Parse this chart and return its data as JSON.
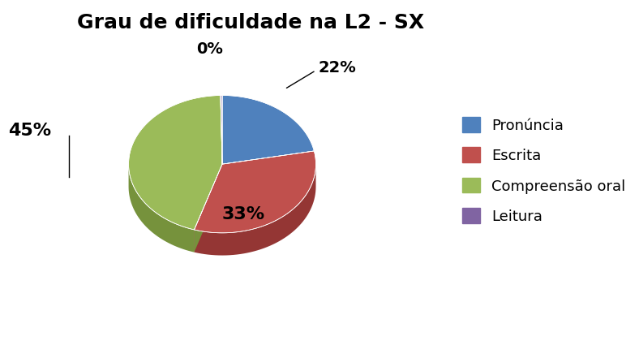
{
  "title": "Grau de dificuldade na L2 - SX",
  "labels": [
    "Pronúncia",
    "Escrita",
    "Compreensão oral",
    "Leitura"
  ],
  "values": [
    22,
    33,
    45,
    0.3
  ],
  "display_pcts": [
    "22%",
    "33%",
    "45%",
    "0%"
  ],
  "colors": [
    "#4F81BD",
    "#C0504D",
    "#9BBB59",
    "#8064A2"
  ],
  "dark_colors": [
    "#1F3864",
    "#943634",
    "#76923C",
    "#5F497A"
  ],
  "legend_labels": [
    "Pronúncia",
    "Escrita",
    "Compreensão oral",
    "Leitura"
  ],
  "legend_colors": [
    "#4F81BD",
    "#C0504D",
    "#9BBB59",
    "#8064A2"
  ],
  "bg_color": "#FFFFFF",
  "title_fontsize": 18,
  "label_fontsize": 14,
  "legend_fontsize": 13
}
